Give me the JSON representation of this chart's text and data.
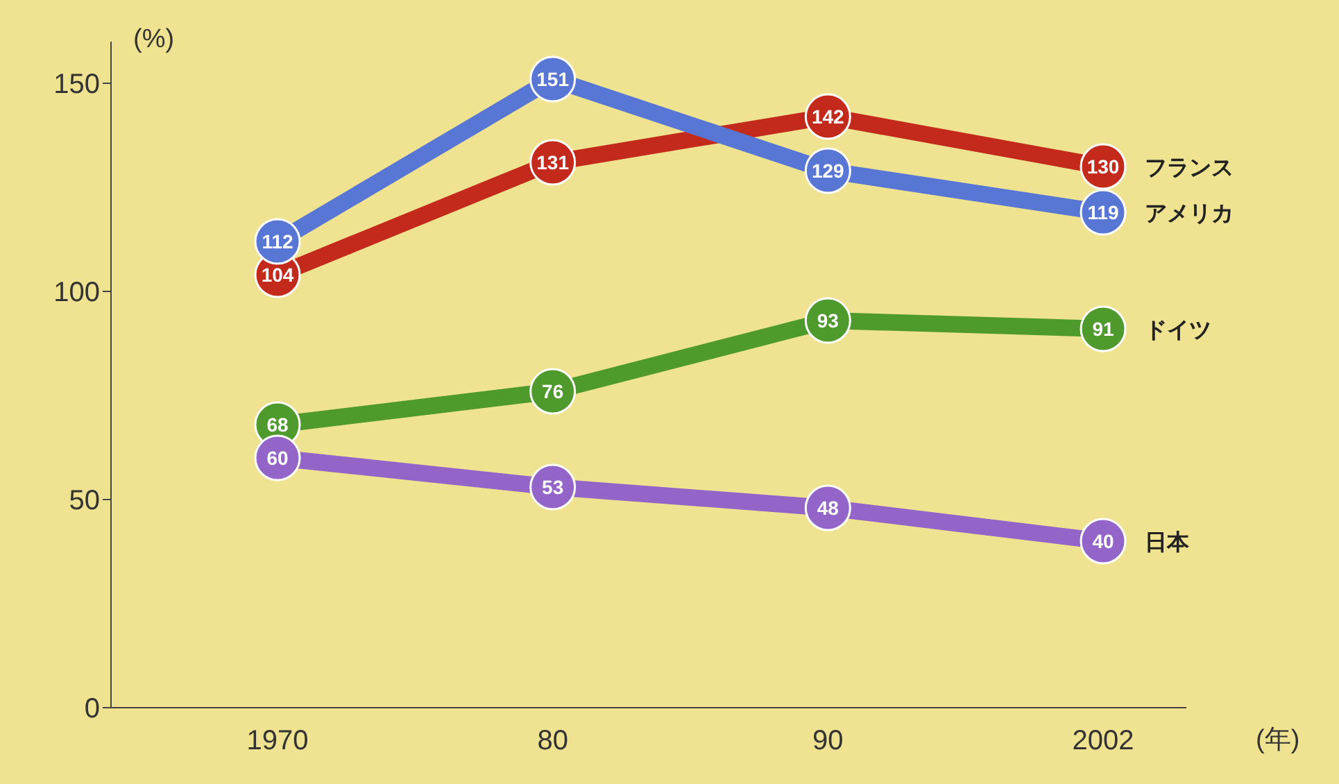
{
  "chart_data": {
    "type": "line",
    "ylabel": "(%)",
    "xlabel": "(年)",
    "categories": [
      "1970",
      "80",
      "90",
      "2002"
    ],
    "series": [
      {
        "name": "フランス",
        "color": "#c42a1c",
        "values": [
          104,
          131,
          142,
          130
        ]
      },
      {
        "name": "アメリカ",
        "color": "#5876d4",
        "values": [
          112,
          151,
          129,
          119
        ]
      },
      {
        "name": "ドイツ",
        "color": "#4e9a2c",
        "values": [
          68,
          76,
          93,
          91
        ]
      },
      {
        "name": "日本",
        "color": "#9465c8",
        "values": [
          60,
          53,
          48,
          40
        ]
      }
    ],
    "ylim": [
      0,
      160
    ],
    "yticks": [
      0,
      50,
      100,
      150
    ],
    "grid": false,
    "marker": "circle",
    "line_style": "solid",
    "data_labels": true
  }
}
